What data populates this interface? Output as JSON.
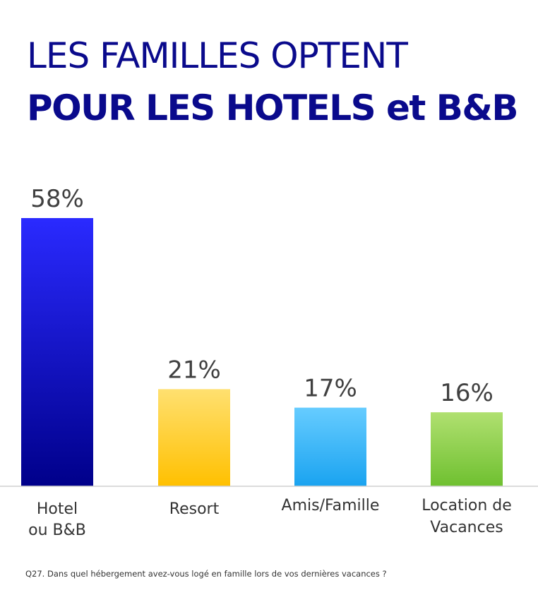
{
  "title": {
    "line1": "LES FAMILLES OPTENT",
    "line2": "POUR LES HOTELS et B&B"
  },
  "footnote": "Q27. Dans quel hébergement avez-vous logé en famille lors de vos dernières vacances ?",
  "colors": {
    "title": "#0a0a8c",
    "bar_hotel": [
      "#2a2aff",
      "#00008a"
    ],
    "bar_resort": [
      "#ffe070",
      "#ffc000"
    ],
    "bar_amis": [
      "#66ccff",
      "#1aa3f0"
    ],
    "bar_location": [
      "#b0e070",
      "#6fc030"
    ],
    "label_text": "#404040",
    "axis": "#d0d0d0"
  },
  "chart_data": {
    "type": "bar",
    "categories": [
      [
        "Hotel",
        "ou B&B"
      ],
      [
        "Resort"
      ],
      [
        "Amis/Famille"
      ],
      [
        "Location de",
        "Vacances"
      ]
    ],
    "values": [
      58,
      21,
      17,
      16
    ],
    "data_labels": [
      "58%",
      "21%",
      "17%",
      "16%"
    ],
    "unit": "%",
    "title": "LES FAMILLES OPTENT POUR LES HOTELS et B&B",
    "xlabel": "",
    "ylabel": "",
    "grid": false,
    "legend": "none"
  }
}
